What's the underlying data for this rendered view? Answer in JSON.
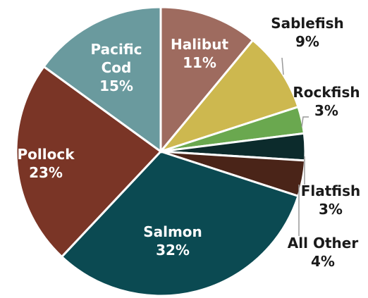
{
  "chart_data": {
    "type": "pie",
    "categories": [
      "Halibut",
      "Sablefish",
      "Rockfish",
      "Flatfish",
      "All Other",
      "Salmon",
      "Pollock",
      "Pacific Cod"
    ],
    "values": [
      11,
      9,
      3,
      3,
      4,
      32,
      23,
      15
    ],
    "value_labels": [
      "11%",
      "9%",
      "3%",
      "3%",
      "4%",
      "32%",
      "23%",
      "15%"
    ],
    "colors": [
      "#9e6b5f",
      "#cdb84f",
      "#6aa84f",
      "#0c2b2c",
      "#4a2418",
      "#0b4a52",
      "#7a3526",
      "#6a9a9e"
    ]
  }
}
